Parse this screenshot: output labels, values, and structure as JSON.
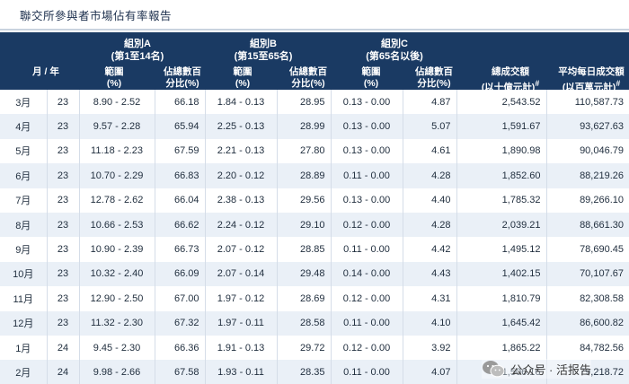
{
  "title": "聯交所參與者市場佔有率報告",
  "header": {
    "groups": [
      {
        "name": "組別A",
        "range": "(第1至14名)"
      },
      {
        "name": "組別B",
        "range": "(第15至65名)"
      },
      {
        "name": "組別C",
        "range": "(第65名以後)"
      }
    ],
    "month_year": "月 / 年",
    "range_label_1": "範圍",
    "range_label_2": "(%)",
    "share_label_1": "佔總數百",
    "share_label_2": "分比(%)",
    "turnover_label_1": "總成交額",
    "turnover_label_2": "(以十億元計)",
    "avg_label_1": "平均每日成交額",
    "avg_label_2": "(以百萬元計)",
    "footnote_mark": "#"
  },
  "rows": [
    {
      "month": "3月",
      "year": "23",
      "a_range": "8.90 - 2.52",
      "a_share": "66.18",
      "b_range": "1.84 - 0.13",
      "b_share": "28.95",
      "c_range": "0.13 - 0.00",
      "c_share": "4.87",
      "turnover": "2,543.52",
      "avg": "110,587.73"
    },
    {
      "month": "4月",
      "year": "23",
      "a_range": "9.57 - 2.28",
      "a_share": "65.94",
      "b_range": "2.25 - 0.13",
      "b_share": "28.99",
      "c_range": "0.13 - 0.00",
      "c_share": "5.07",
      "turnover": "1,591.67",
      "avg": "93,627.63"
    },
    {
      "month": "5月",
      "year": "23",
      "a_range": "11.18 - 2.23",
      "a_share": "67.59",
      "b_range": "2.21 - 0.13",
      "b_share": "27.80",
      "c_range": "0.13 - 0.00",
      "c_share": "4.61",
      "turnover": "1,890.98",
      "avg": "90,046.79"
    },
    {
      "month": "6月",
      "year": "23",
      "a_range": "10.70 - 2.29",
      "a_share": "66.83",
      "b_range": "2.20 - 0.12",
      "b_share": "28.89",
      "c_range": "0.11 - 0.00",
      "c_share": "4.28",
      "turnover": "1,852.60",
      "avg": "88,219.26"
    },
    {
      "month": "7月",
      "year": "23",
      "a_range": "12.78 - 2.62",
      "a_share": "66.04",
      "b_range": "2.38 - 0.13",
      "b_share": "29.56",
      "c_range": "0.13 - 0.00",
      "c_share": "4.40",
      "turnover": "1,785.32",
      "avg": "89,266.10"
    },
    {
      "month": "8月",
      "year": "23",
      "a_range": "10.66 - 2.53",
      "a_share": "66.62",
      "b_range": "2.24 - 0.12",
      "b_share": "29.10",
      "c_range": "0.12 - 0.00",
      "c_share": "4.28",
      "turnover": "2,039.21",
      "avg": "88,661.30"
    },
    {
      "month": "9月",
      "year": "23",
      "a_range": "10.90 - 2.39",
      "a_share": "66.73",
      "b_range": "2.07 - 0.12",
      "b_share": "28.85",
      "c_range": "0.11 - 0.00",
      "c_share": "4.42",
      "turnover": "1,495.12",
      "avg": "78,690.45"
    },
    {
      "month": "10月",
      "year": "23",
      "a_range": "10.32 - 2.40",
      "a_share": "66.09",
      "b_range": "2.07 - 0.14",
      "b_share": "29.48",
      "c_range": "0.14 - 0.00",
      "c_share": "4.43",
      "turnover": "1,402.15",
      "avg": "70,107.67"
    },
    {
      "month": "11月",
      "year": "23",
      "a_range": "12.90 - 2.50",
      "a_share": "67.00",
      "b_range": "1.97 - 0.12",
      "b_share": "28.69",
      "c_range": "0.12 - 0.00",
      "c_share": "4.31",
      "turnover": "1,810.79",
      "avg": "82,308.58"
    },
    {
      "month": "12月",
      "year": "23",
      "a_range": "11.32 - 2.30",
      "a_share": "67.32",
      "b_range": "1.97 - 0.11",
      "b_share": "28.58",
      "c_range": "0.11 - 0.00",
      "c_share": "4.10",
      "turnover": "1,645.42",
      "avg": "86,600.82"
    },
    {
      "month": "1月",
      "year": "24",
      "a_range": "9.45 - 2.30",
      "a_share": "66.36",
      "b_range": "1.91 - 0.13",
      "b_share": "29.72",
      "c_range": "0.12 - 0.00",
      "c_share": "3.92",
      "turnover": "1,865.22",
      "avg": "84,782.56"
    },
    {
      "month": "2月",
      "year": "24",
      "a_range": "9.98 - 2.66",
      "a_share": "67.58",
      "b_range": "1.93 - 0.11",
      "b_share": "28.35",
      "c_range": "0.11 - 0.00",
      "c_share": "4.07",
      "turnover": "1,506.16",
      "avg": "79,218.72"
    }
  ],
  "watermark": {
    "text": "公众号 · 活报告",
    "icon": "wechat-icon"
  }
}
